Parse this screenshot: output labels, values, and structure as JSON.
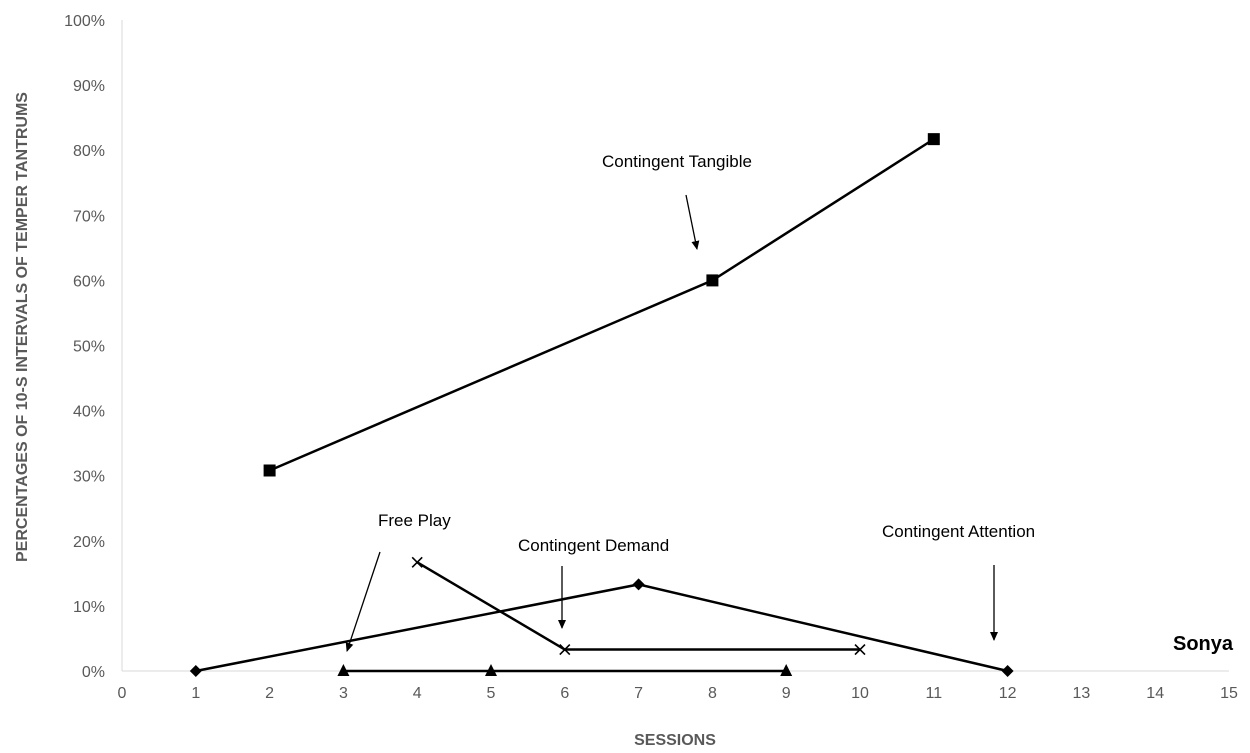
{
  "chart_data": {
    "type": "line",
    "title": "",
    "xlabel": "SESSIONS",
    "ylabel": "PERCENTAGES OF 10-S INTERVALS OF TEMPER TANTRUMS",
    "xlim": [
      0,
      15
    ],
    "ylim": [
      0,
      100
    ],
    "x_ticks": [
      "0",
      "1",
      "2",
      "3",
      "4",
      "5",
      "6",
      "7",
      "8",
      "9",
      "10",
      "11",
      "12",
      "13",
      "14",
      "15"
    ],
    "y_ticks": [
      "0%",
      "10%",
      "20%",
      "30%",
      "40%",
      "50%",
      "60%",
      "70%",
      "80%",
      "90%",
      "100%"
    ],
    "grid": false,
    "participant_label": "Sonya",
    "series": [
      {
        "name": "Contingent Attention",
        "marker": "diamond",
        "x": [
          1,
          7,
          12
        ],
        "y": [
          0,
          13.3,
          0
        ]
      },
      {
        "name": "Contingent Tangible",
        "marker": "square",
        "x": [
          2,
          8,
          11
        ],
        "y": [
          30.8,
          60,
          81.7
        ]
      },
      {
        "name": "Free Play",
        "marker": "triangle",
        "x": [
          3,
          5,
          9
        ],
        "y": [
          0,
          0,
          0
        ]
      },
      {
        "name": "Contingent Demand",
        "marker": "x",
        "x": [
          4,
          6,
          10
        ],
        "y": [
          16.7,
          3.3,
          3.3
        ]
      }
    ],
    "annotations": [
      {
        "text": "Contingent Tangible"
      },
      {
        "text": "Free Play"
      },
      {
        "text": "Contingent Demand"
      },
      {
        "text": "Contingent Attention"
      }
    ]
  }
}
